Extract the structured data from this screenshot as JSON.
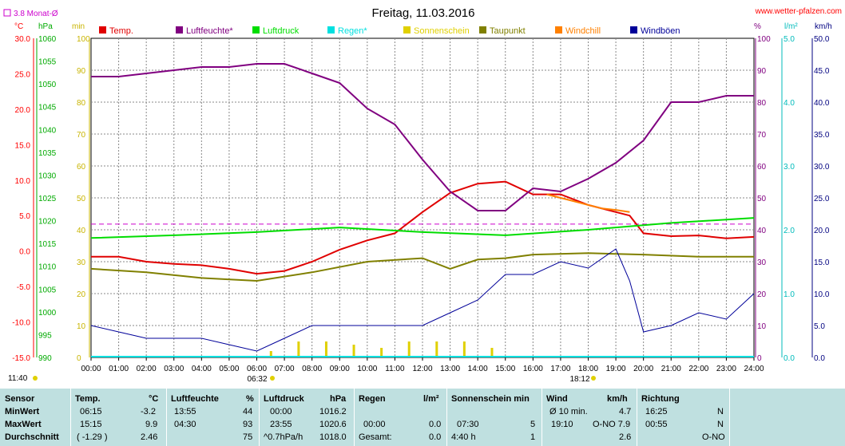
{
  "title": "Freitag, 11.03.2016",
  "website": "www.wetter-pfalzen.com",
  "avg_label": "3.8 Monat-Ø",
  "units_left": {
    "celsius": "°C",
    "hpa": "hPa",
    "min": "min"
  },
  "units_right": {
    "percent": "%",
    "lm2": "l/m²",
    "kmh": "km/h"
  },
  "legend": [
    {
      "label": "Temp.",
      "color": "#e00000"
    },
    {
      "label": "Luftfeuchte*",
      "color": "#800080"
    },
    {
      "label": "Luftdruck",
      "color": "#00dd00"
    },
    {
      "label": "Regen*",
      "color": "#00e0e0"
    },
    {
      "label": "Sonnenschein",
      "color": "#e0d000"
    },
    {
      "label": "Taupunkt",
      "color": "#808000"
    },
    {
      "label": "Windchill",
      "color": "#ff8000"
    },
    {
      "label": "Windböen",
      "color": "#000099"
    }
  ],
  "sunrise": "06:32",
  "sunset": "18:12",
  "start_time_label": "11:40",
  "chart_data": {
    "type": "line",
    "x_unit": "hour",
    "xlim": [
      0,
      24
    ],
    "x_ticks": [
      "00:00",
      "01:00",
      "02:00",
      "03:00",
      "04:00",
      "05:00",
      "06:00",
      "07:00",
      "08:00",
      "09:00",
      "10:00",
      "11:00",
      "12:00",
      "13:00",
      "14:00",
      "15:00",
      "16:00",
      "17:00",
      "18:00",
      "19:00",
      "20:00",
      "21:00",
      "22:00",
      "23:00",
      "24:00"
    ],
    "axes": {
      "temp": {
        "range": [
          -15,
          30
        ],
        "ticks": [
          "-15.0",
          "-10.0",
          "-5.0",
          "0.0",
          "5.0",
          "10.0",
          "15.0",
          "20.0",
          "25.0",
          "30.0"
        ]
      },
      "pressure": {
        "range": [
          990,
          1060
        ],
        "ticks": [
          "990",
          "995",
          "1000",
          "1005",
          "1010",
          "1015",
          "1020",
          "1025",
          "1030",
          "1035",
          "1040",
          "1045",
          "1050",
          "1055",
          "1060"
        ]
      },
      "minutes": {
        "range": [
          0,
          100
        ],
        "ticks": [
          "0",
          "10",
          "20",
          "30",
          "40",
          "50",
          "60",
          "70",
          "80",
          "90",
          "100"
        ]
      },
      "humidity": {
        "range": [
          0,
          100
        ],
        "ticks": [
          "0",
          "10",
          "20",
          "30",
          "40",
          "50",
          "60",
          "70",
          "80",
          "90",
          "100"
        ]
      },
      "rain": {
        "range": [
          0,
          5
        ],
        "ticks": [
          "0.0",
          "1.0",
          "2.0",
          "3.0",
          "4.0",
          "5.0"
        ]
      },
      "wind": {
        "range": [
          0,
          50
        ],
        "ticks": [
          "0.0",
          "5.0",
          "10.0",
          "15.0",
          "20.0",
          "25.0",
          "30.0",
          "35.0",
          "40.0",
          "45.0",
          "50.0"
        ]
      }
    },
    "monthly_avg_temp": 3.8,
    "series": [
      {
        "name": "Temp.",
        "axis": "temp",
        "points": [
          [
            0,
            -0.8
          ],
          [
            1,
            -0.8
          ],
          [
            2,
            -1.5
          ],
          [
            3,
            -1.8
          ],
          [
            4,
            -2.0
          ],
          [
            5,
            -2.5
          ],
          [
            6,
            -3.2
          ],
          [
            7,
            -2.8
          ],
          [
            8,
            -1.5
          ],
          [
            9,
            0.2
          ],
          [
            10,
            1.5
          ],
          [
            11,
            2.5
          ],
          [
            12,
            5.5
          ],
          [
            13,
            8.2
          ],
          [
            14,
            9.5
          ],
          [
            15,
            9.8
          ],
          [
            16,
            8.0
          ],
          [
            17,
            8.0
          ],
          [
            18,
            6.5
          ],
          [
            19,
            5.5
          ],
          [
            19.5,
            5.0
          ],
          [
            20,
            2.5
          ],
          [
            21,
            2.1
          ],
          [
            22,
            2.2
          ],
          [
            23,
            1.8
          ],
          [
            24,
            2.0
          ]
        ]
      },
      {
        "name": "Luftfeuchte*",
        "axis": "humidity",
        "points": [
          [
            0,
            88
          ],
          [
            1,
            88
          ],
          [
            2,
            89
          ],
          [
            3,
            90
          ],
          [
            4,
            91
          ],
          [
            5,
            91
          ],
          [
            6,
            92
          ],
          [
            7,
            92
          ],
          [
            8,
            89
          ],
          [
            9,
            86
          ],
          [
            10,
            78
          ],
          [
            11,
            73
          ],
          [
            12,
            62
          ],
          [
            13,
            52
          ],
          [
            14,
            46
          ],
          [
            15,
            46
          ],
          [
            16,
            53
          ],
          [
            17,
            52
          ],
          [
            18,
            56
          ],
          [
            19,
            61
          ],
          [
            20,
            68
          ],
          [
            21,
            80
          ],
          [
            22,
            80
          ],
          [
            23,
            82
          ],
          [
            24,
            82
          ]
        ]
      },
      {
        "name": "Luftdruck",
        "axis": "pressure",
        "points": [
          [
            0,
            1016.2
          ],
          [
            3,
            1016.8
          ],
          [
            6,
            1017.5
          ],
          [
            9,
            1018.5
          ],
          [
            12,
            1017.5
          ],
          [
            15,
            1016.8
          ],
          [
            18,
            1018.0
          ],
          [
            21,
            1019.5
          ],
          [
            24,
            1020.6
          ]
        ]
      },
      {
        "name": "Taupunkt",
        "axis": "temp",
        "points": [
          [
            0,
            -2.5
          ],
          [
            2,
            -3.0
          ],
          [
            4,
            -3.8
          ],
          [
            6,
            -4.2
          ],
          [
            8,
            -3.0
          ],
          [
            10,
            -1.5
          ],
          [
            12,
            -1.0
          ],
          [
            13,
            -2.5
          ],
          [
            14,
            -1.2
          ],
          [
            15,
            -1.0
          ],
          [
            16,
            -0.5
          ],
          [
            18,
            -0.3
          ],
          [
            20,
            -0.5
          ],
          [
            22,
            -0.8
          ],
          [
            24,
            -0.8
          ]
        ]
      },
      {
        "name": "Windchill",
        "axis": "temp",
        "points": [
          [
            16.5,
            8.0
          ],
          [
            17,
            7.5
          ],
          [
            17.5,
            7.0
          ],
          [
            18,
            6.5
          ],
          [
            18.5,
            6.0
          ],
          [
            19,
            5.8
          ],
          [
            19.5,
            5.5
          ]
        ]
      },
      {
        "name": "Windböen",
        "axis": "wind",
        "points": [
          [
            0,
            5
          ],
          [
            1,
            4
          ],
          [
            2,
            3
          ],
          [
            3,
            3
          ],
          [
            4,
            3
          ],
          [
            5,
            2
          ],
          [
            6,
            1
          ],
          [
            7,
            3
          ],
          [
            8,
            5
          ],
          [
            9,
            5
          ],
          [
            10,
            5
          ],
          [
            11,
            5
          ],
          [
            12,
            5
          ],
          [
            13,
            7
          ],
          [
            14,
            9
          ],
          [
            15,
            13
          ],
          [
            16,
            13
          ],
          [
            17,
            15
          ],
          [
            18,
            14
          ],
          [
            19,
            17
          ],
          [
            19.5,
            12
          ],
          [
            20,
            4
          ],
          [
            21,
            5
          ],
          [
            22,
            7
          ],
          [
            23,
            6
          ],
          [
            23.5,
            8
          ],
          [
            24,
            10
          ]
        ]
      }
    ],
    "sunshine_minutes": [
      [
        6.5,
        2
      ],
      [
        7.5,
        5
      ],
      [
        8.5,
        5
      ],
      [
        9.5,
        4
      ],
      [
        10.5,
        3
      ],
      [
        11.5,
        5
      ],
      [
        12.5,
        5
      ],
      [
        13.5,
        5
      ],
      [
        14.5,
        3
      ]
    ]
  },
  "stats": {
    "headers": {
      "sensor": "Sensor",
      "temp": "Temp.",
      "temp_unit": "°C",
      "hum": "Luftfeuchte",
      "hum_unit": "%",
      "press": "Luftdruck",
      "press_unit": "hPa",
      "rain": "Regen",
      "rain_unit": "l/m²",
      "sun": "Sonnenschein min",
      "wind": "Wind",
      "wind_unit": "km/h",
      "dir": "Richtung"
    },
    "rows": [
      {
        "label": "MinWert",
        "temp_time": "06:15",
        "temp_val": "-3.2",
        "hum_time": "13:55",
        "hum_val": "44",
        "press_time": "00:00",
        "press_val": "1016.2",
        "rain_time": "",
        "rain_val": "",
        "sun_time": "",
        "sun_val": "",
        "wind_time": "Ø 10 min.",
        "wind_val": "4.7",
        "dir_time": "16:25",
        "dir_val": "N"
      },
      {
        "label": "MaxWert",
        "temp_time": "15:15",
        "temp_val": "9.9",
        "hum_time": "04:30",
        "hum_val": "93",
        "press_time": "23:55",
        "press_val": "1020.6",
        "rain_time": "00:00",
        "rain_val": "0.0",
        "sun_time": "07:30",
        "sun_val": "5",
        "wind_time": "19:10",
        "wind_val": "O-NO 7.9",
        "dir_time": "00:55",
        "dir_val": "N"
      },
      {
        "label": "Durchschnitt",
        "temp_time": "( -1.29 )",
        "temp_val": "2.46",
        "hum_time": "",
        "hum_val": "75",
        "press_time": "^0.7hPa/h",
        "press_val": "1018.0",
        "rain_time": "Gesamt:",
        "rain_val": "0.0",
        "sun_time": "4:40 h",
        "sun_val": "1",
        "wind_time": "",
        "wind_val": "2.6",
        "dir_time": "",
        "dir_val": "O-NO"
      }
    ]
  }
}
